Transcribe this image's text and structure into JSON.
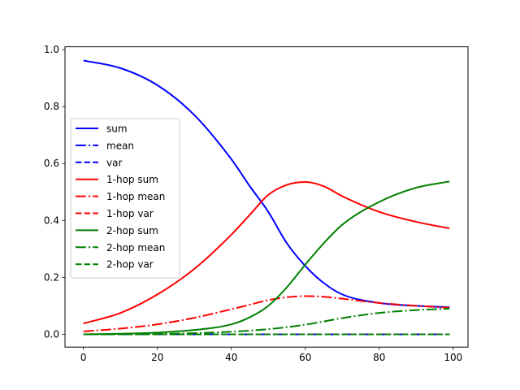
{
  "chart_data": {
    "type": "line",
    "title": "",
    "xlabel": "",
    "ylabel": "",
    "xlim": [
      -5,
      104
    ],
    "ylim": [
      -0.045,
      1.01
    ],
    "xticks": [
      0,
      20,
      40,
      60,
      80,
      100
    ],
    "yticks": [
      0.0,
      0.2,
      0.4,
      0.6,
      0.8,
      1.0
    ],
    "xtick_labels": [
      "0",
      "20",
      "40",
      "60",
      "80",
      "100"
    ],
    "ytick_labels": [
      "0.0",
      "0.2",
      "0.4",
      "0.6",
      "0.8",
      "1.0"
    ],
    "grid": false,
    "legend_position": "center-left",
    "x": [
      0,
      10,
      20,
      30,
      40,
      45,
      50,
      55,
      60,
      65,
      70,
      80,
      90,
      99
    ],
    "series": [
      {
        "name": "sum",
        "color": "#0000ff",
        "style": "solid",
        "values": [
          0.962,
          0.935,
          0.875,
          0.77,
          0.615,
          0.52,
          0.43,
          0.32,
          0.24,
          0.18,
          0.14,
          0.11,
          0.1,
          0.095
        ]
      },
      {
        "name": "mean",
        "color": "#0000ff",
        "style": "dashdot",
        "values": [
          0,
          0,
          0,
          0,
          0,
          0,
          0,
          0,
          0,
          0,
          0,
          0,
          0,
          0
        ]
      },
      {
        "name": "var",
        "color": "#0000ff",
        "style": "dashed",
        "values": [
          0,
          0,
          0,
          0,
          0,
          0,
          0,
          0,
          0,
          0,
          0,
          0,
          0,
          0
        ]
      },
      {
        "name": "1-hop sum",
        "color": "#ff0000",
        "style": "solid",
        "values": [
          0.038,
          0.075,
          0.14,
          0.23,
          0.35,
          0.42,
          0.49,
          0.525,
          0.535,
          0.52,
          0.485,
          0.43,
          0.395,
          0.372
        ]
      },
      {
        "name": "1-hop mean",
        "color": "#ff0000",
        "style": "dashdot",
        "values": [
          0.01,
          0.02,
          0.035,
          0.058,
          0.088,
          0.104,
          0.12,
          0.13,
          0.134,
          0.132,
          0.125,
          0.11,
          0.1,
          0.093
        ]
      },
      {
        "name": "1-hop var",
        "color": "#ff0000",
        "style": "dashed",
        "values": [
          0,
          0,
          0,
          0,
          0,
          0,
          0,
          0,
          0,
          0,
          0,
          0,
          0,
          0
        ]
      },
      {
        "name": "2-hop sum",
        "color": "#008000",
        "style": "solid",
        "values": [
          0.0,
          0.002,
          0.006,
          0.015,
          0.035,
          0.06,
          0.1,
          0.165,
          0.245,
          0.32,
          0.385,
          0.465,
          0.515,
          0.537
        ]
      },
      {
        "name": "2-hop mean",
        "color": "#008000",
        "style": "dashdot",
        "values": [
          0.0,
          0.0005,
          0.0015,
          0.004,
          0.009,
          0.013,
          0.018,
          0.025,
          0.034,
          0.045,
          0.057,
          0.075,
          0.085,
          0.09
        ]
      },
      {
        "name": "2-hop var",
        "color": "#008000",
        "style": "dashed",
        "values": [
          0,
          0,
          0,
          0,
          0,
          0,
          0,
          0,
          0,
          0,
          0,
          0,
          0,
          0
        ]
      }
    ]
  }
}
